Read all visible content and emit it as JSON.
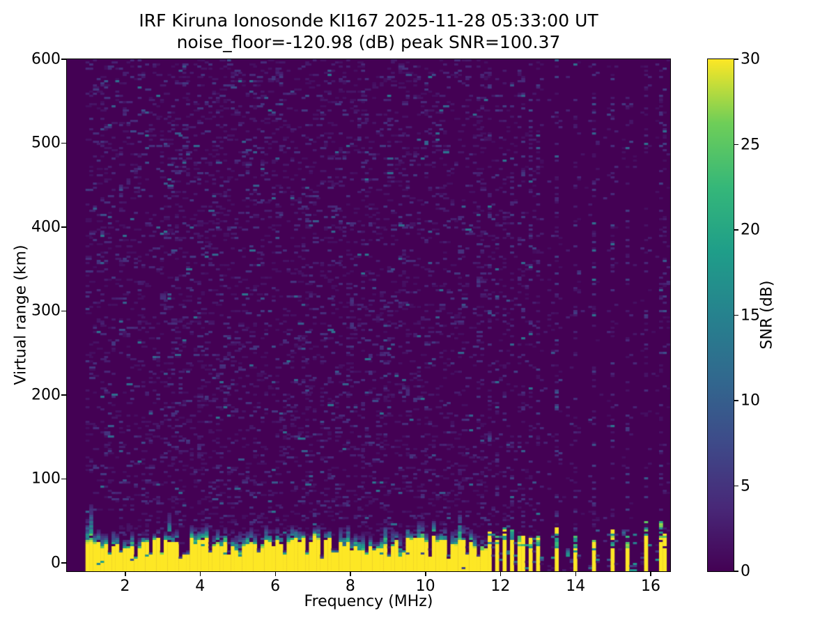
{
  "figure": {
    "title_line1": "IRF Kiruna Ionosonde KI167 2025-11-28 05:33:00  UT",
    "title_line2": "noise_floor=-120.98 (dB) peak SNR=100.37"
  },
  "chart_data": {
    "type": "heatmap",
    "title": "IRF Kiruna Ionosonde KI167 2025-11-28 05:33:00  UT",
    "subtitle": "noise_floor=-120.98 (dB) peak SNR=100.37",
    "station": "IRF Kiruna Ionosonde KI167",
    "timestamp_ut": "2025-11-28 05:33:00",
    "noise_floor_db": -120.98,
    "peak_snr_db": 100.37,
    "xlabel": "Frequency (MHz)",
    "ylabel": "Virtual range (km)",
    "colorbar_label": "SNR (dB)",
    "x_range": [
      0.45,
      16.52
    ],
    "y_range": [
      -10,
      600
    ],
    "x_ticks": [
      2,
      4,
      6,
      8,
      10,
      12,
      14,
      16
    ],
    "x_tick_labels": [
      "2",
      "4",
      "6",
      "8",
      "10",
      "12",
      "14",
      "16"
    ],
    "y_ticks": [
      0,
      100,
      200,
      300,
      400,
      500,
      600
    ],
    "y_tick_labels": [
      "0",
      "100",
      "200",
      "300",
      "400",
      "500",
      "600"
    ],
    "colorbar_range": [
      0,
      30
    ],
    "colorbar_ticks": [
      0,
      5,
      10,
      15,
      20,
      25,
      30
    ],
    "colorbar_tick_labels": [
      "0",
      "5",
      "10",
      "15",
      "20",
      "25",
      "30"
    ],
    "grid_on": false,
    "legend": "none",
    "colormap": "viridis",
    "colormap_stops": [
      [
        0.0,
        "#440154"
      ],
      [
        0.125,
        "#482878"
      ],
      [
        0.25,
        "#3e4a89"
      ],
      [
        0.375,
        "#31688e"
      ],
      [
        0.5,
        "#26828e"
      ],
      [
        0.625,
        "#1f9e89"
      ],
      [
        0.75,
        "#35b779"
      ],
      [
        0.875,
        "#6ece58"
      ],
      [
        1.0,
        "#fde725"
      ]
    ],
    "grid": {
      "cols": 162,
      "rows": 245
    },
    "seed": 1167,
    "features": {
      "background_snr_db": 0,
      "sweep_start_mhz": 0.93,
      "continuous_band": {
        "f_start_mhz": 0.93,
        "f_end_mhz": 11.66,
        "base_km": -10,
        "yellow_top_km_mean": 26,
        "transition_top_km_mean": 42,
        "tall_plume_below_mhz": 1.16
      },
      "notch_freqs_mhz": [
        1.55,
        1.9,
        2.25,
        2.95,
        3.5,
        3.65,
        4.3,
        4.75,
        5.1,
        5.55,
        6.3,
        6.85,
        7.25,
        7.65,
        8.4,
        9.0,
        9.45,
        10.15,
        10.6,
        11.1,
        11.45
      ],
      "discrete_bar_freqs_mhz": [
        11.74,
        11.93,
        12.11,
        12.3,
        12.48,
        12.63,
        12.82,
        13.0,
        13.46,
        13.95,
        14.46,
        14.96,
        15.42,
        15.9,
        16.32
      ],
      "discrete_bar_top_km": [
        22,
        20,
        21,
        22,
        19,
        18,
        20,
        19,
        22,
        10,
        18,
        16,
        14,
        26,
        20
      ],
      "dense_bars_below_mhz": 13.1,
      "noise_speckle_max_db": 13
    }
  }
}
